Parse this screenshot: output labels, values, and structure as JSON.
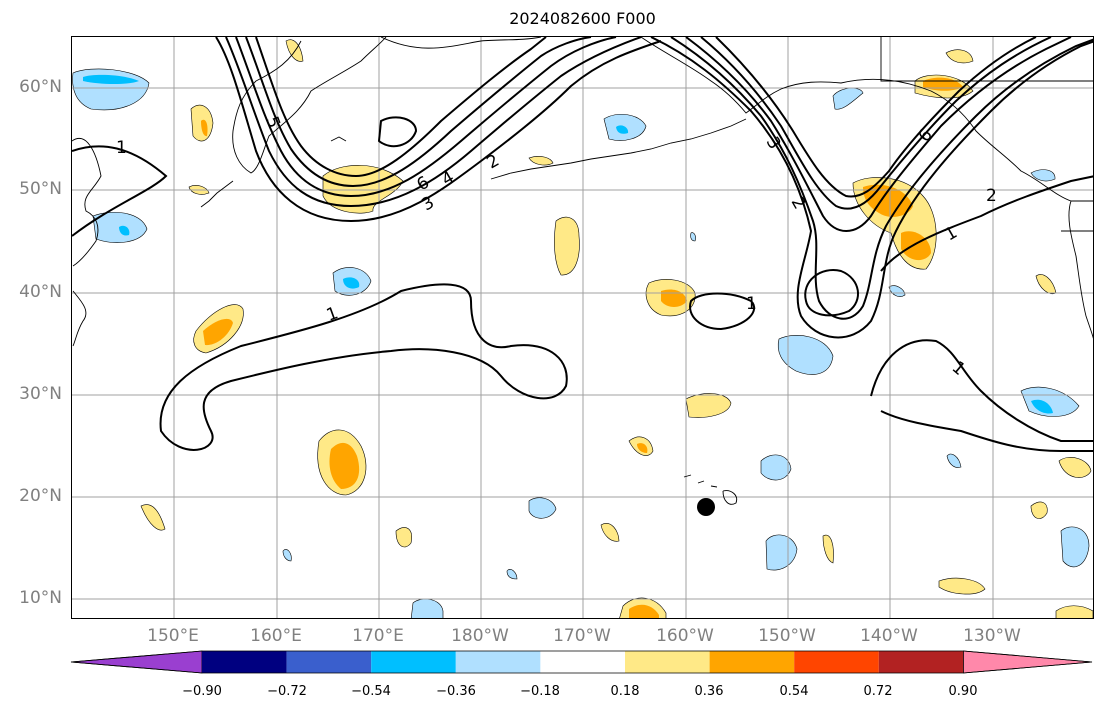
{
  "title": "2024082600 F000",
  "lat_labels": [
    "60°N",
    "50°N",
    "40°N",
    "30°N",
    "20°N",
    "10°N"
  ],
  "lon_labels": [
    "150°E",
    "160°E",
    "170°E",
    "180°W",
    "170°W",
    "160°W",
    "150°W",
    "140°W",
    "130°W"
  ],
  "contour_labels": [
    "1",
    "1",
    "1",
    "1",
    "1",
    "2",
    "2",
    "2",
    "3",
    "3",
    "4",
    "5",
    "6",
    "6"
  ],
  "colorbar": {
    "ticks": [
      "−0.90",
      "−0.72",
      "−0.54",
      "−0.36",
      "−0.18",
      "0.18",
      "0.36",
      "0.54",
      "0.72",
      "0.90"
    ],
    "colors": [
      "#9a3fd0",
      "#000080",
      "#3a5fcd",
      "#00bfff",
      "#b0e0ff",
      "#ffffff",
      "#ffe987",
      "#ffa500",
      "#ff4500",
      "#b22222",
      "#ff88aa"
    ]
  },
  "colors": {
    "positive_light": "#ffe987",
    "positive_mid": "#ffa500",
    "negative_light": "#b0e0ff",
    "negative_mid": "#00bfff",
    "grid": "#a0a0a0",
    "axis_text": "#808080"
  }
}
